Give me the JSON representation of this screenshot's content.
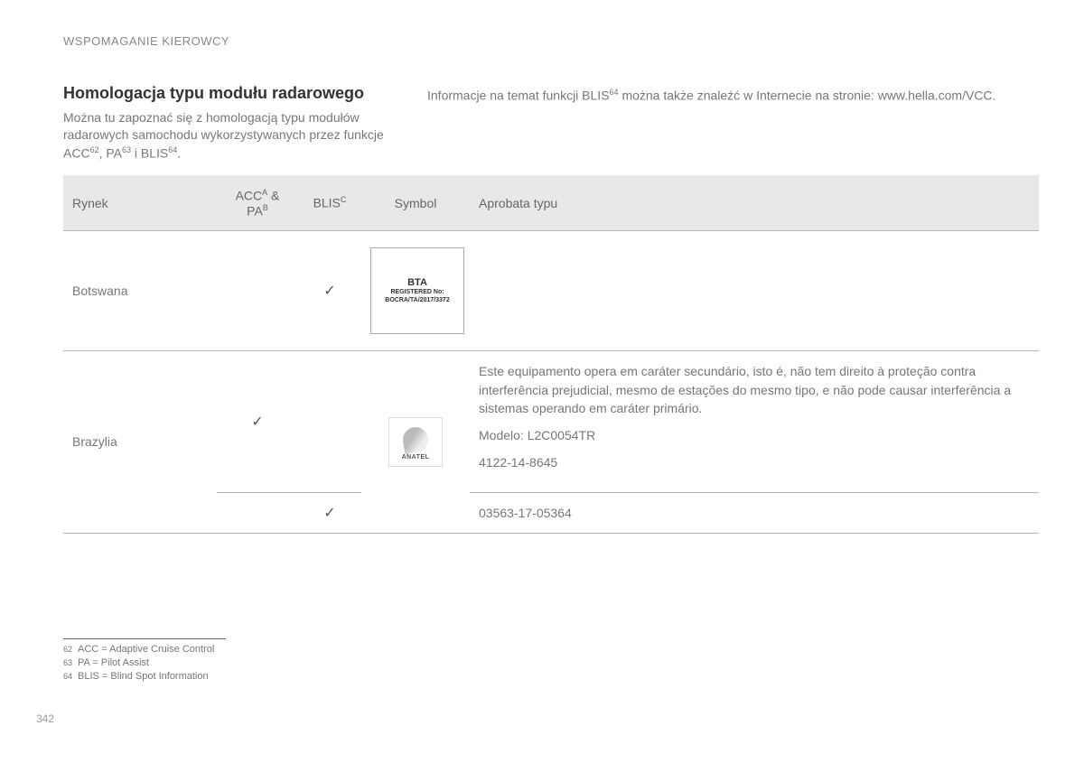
{
  "header": {
    "section": "WSPOMAGANIE KIEROWCY"
  },
  "title": "Homologacja typu modułu radarowego",
  "intro_left_1": "Można tu zapoznać się z homologacją typu modułów radarowych samochodu wykorzystywanych przez funkcje ACC",
  "intro_left_sup1": "62",
  "intro_left_2": ", PA",
  "intro_left_sup2": "63",
  "intro_left_3": " i BLIS",
  "intro_left_sup3": "64",
  "intro_left_4": ".",
  "intro_right_1": "Informacje na temat funkcji BLIS",
  "intro_right_sup": "64",
  "intro_right_2": " można także znaleźć w Internecie na stronie: www.hella.com/VCC.",
  "table": {
    "headers": {
      "rynek": "Rynek",
      "acc_pa_1": "ACC",
      "acc_pa_supA": "A",
      "acc_pa_amp": " & PA",
      "acc_pa_supB": "B",
      "blis": "BLIS",
      "blis_supC": "C",
      "symbol": "Symbol",
      "aprobata": "Aprobata typu"
    },
    "rows": {
      "r1": {
        "rynek": "Botswana",
        "blis_check": "✓",
        "symbol": {
          "line1": "BTA",
          "line2": "REGISTERED No:",
          "line3": "BOCRA/TA/2017/3372"
        },
        "aprobata": ""
      },
      "r2": {
        "rynek": "Brazylia",
        "acc_check": "✓",
        "symbol_label": "ANATEL",
        "aprobata_p1": "Este equipamento opera em caráter secundário, isto é, não tem direito à proteção contra interferência prejudicial, mesmo de estações do mesmo tipo, e não pode causar interferência a sistemas operando em caráter primário.",
        "aprobata_p2": "Modelo: L2C0054TR",
        "aprobata_p3": "4122-14-8645"
      },
      "r3": {
        "blis_check": "✓",
        "aprobata": "03563-17-05364"
      }
    }
  },
  "footnotes": {
    "f1_num": "62",
    "f1_text": "ACC = Adaptive Cruise Control",
    "f2_num": "63",
    "f2_text": "PA = Pilot Assist",
    "f3_num": "64",
    "f3_text": "BLIS = Blind Spot Information"
  },
  "page_number": "342"
}
